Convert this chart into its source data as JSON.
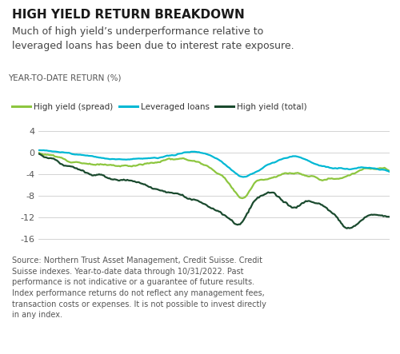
{
  "title": "HIGH YIELD RETURN BREAKDOWN",
  "subtitle": "Much of high yield’s underperformance relative to\nleveraged loans has been due to interest rate exposure.",
  "axis_label": "YEAR-TO-DATE RETURN (%)",
  "ylim": [
    -18,
    6
  ],
  "yticks": [
    4,
    0,
    -4,
    -8,
    -12,
    -16
  ],
  "bg_color": "#ffffff",
  "plot_bg_color": "#ffffff",
  "grid_color": "#cccccc",
  "source_text": "Source: Northern Trust Asset Management, Credit Suisse. Credit\nSuisse indexes. Year-to-date data through 10/31/2022. Past\nperformance is not indicative or a guarantee of future results.\nIndex performance returns do not reflect any management fees,\ntransaction costs or expenses. It is not possible to invest directly\nin any index.",
  "series": {
    "high_yield_spread": {
      "label": "High yield (spread)",
      "color": "#8dc63f",
      "linewidth": 1.6
    },
    "leveraged_loans": {
      "label": "Leveraged loans",
      "color": "#00b8d4",
      "linewidth": 1.6
    },
    "high_yield_total": {
      "label": "High yield (total)",
      "color": "#1a4a2e",
      "linewidth": 1.6
    }
  },
  "n_points": 300,
  "title_fontsize": 11,
  "subtitle_fontsize": 9,
  "axis_label_fontsize": 7.5,
  "legend_fontsize": 7.5,
  "tick_fontsize": 8,
  "source_fontsize": 7
}
